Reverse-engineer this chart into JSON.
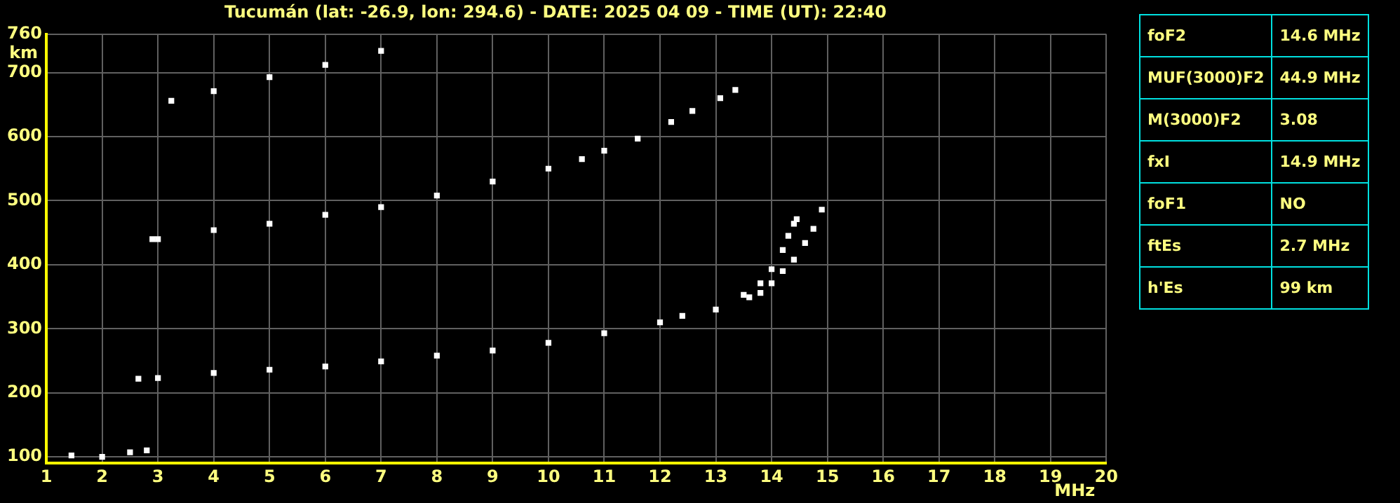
{
  "chart_data": [
    {
      "type": "scatter",
      "title": "Tucumán (lat: -26.9, lon: 294.6) - DATE: 2025 04 09 - TIME (UT): 22:40",
      "xlabel": "MHz",
      "ylabel": "km",
      "xlim": [
        1,
        20
      ],
      "ylim": [
        90,
        760
      ],
      "xticks": [
        1,
        2,
        3,
        4,
        5,
        6,
        7,
        8,
        9,
        10,
        11,
        12,
        13,
        14,
        15,
        16,
        17,
        18,
        19,
        20
      ],
      "yticks": [
        100,
        200,
        300,
        400,
        500,
        600,
        700,
        760
      ],
      "grid": true,
      "marker": "square",
      "series": [
        {
          "color": "#ffffff",
          "x": [
            2.65,
            3,
            4,
            5,
            6,
            7,
            8,
            9,
            10,
            11,
            12,
            12.4,
            13,
            13.5,
            13.8,
            14,
            14.2,
            14.3,
            14.4,
            14.45
          ],
          "values": [
            222,
            223,
            231,
            236,
            241,
            249,
            258,
            266,
            278,
            293,
            310,
            320,
            330,
            353,
            371,
            393,
            423,
            445,
            464,
            471
          ]
        },
        {
          "color": "#ffffff",
          "x": [
            13.6,
            13.8,
            14,
            14.2,
            14.4,
            14.6,
            14.75,
            14.9
          ],
          "values": [
            349,
            356,
            371,
            390,
            408,
            434,
            456,
            486
          ]
        },
        {
          "color": "#ffffff",
          "x": [
            2.9,
            3,
            4,
            5,
            6,
            7,
            8,
            9,
            10,
            10.6,
            11,
            11.6
          ],
          "values": [
            440,
            440,
            454,
            464,
            478,
            490,
            508,
            530,
            550,
            565,
            578,
            597
          ]
        },
        {
          "color": "#ffffff",
          "x": [
            3.24,
            4,
            5,
            6,
            7
          ],
          "values": [
            656,
            671,
            693,
            712,
            734
          ]
        },
        {
          "color": "#ffffff",
          "x": [
            12.2,
            12.58,
            13.08,
            13.35
          ],
          "values": [
            623,
            640,
            660,
            673
          ]
        },
        {
          "color": "#ffffff",
          "x": [
            1.45,
            2,
            2.5,
            2.8
          ],
          "values": [
            102,
            100,
            107,
            110
          ]
        }
      ]
    },
    {
      "type": "other",
      "annotations": [
        "foF2",
        "14.6 MHz",
        "MUF(3000)F2",
        "44.9 MHz",
        "M(3000)F2",
        "3.08",
        "fxI",
        "14.9 MHz",
        "foF1",
        "NO",
        "ftEs",
        "2.7 MHz",
        "h'Es",
        "99 km"
      ]
    }
  ]
}
